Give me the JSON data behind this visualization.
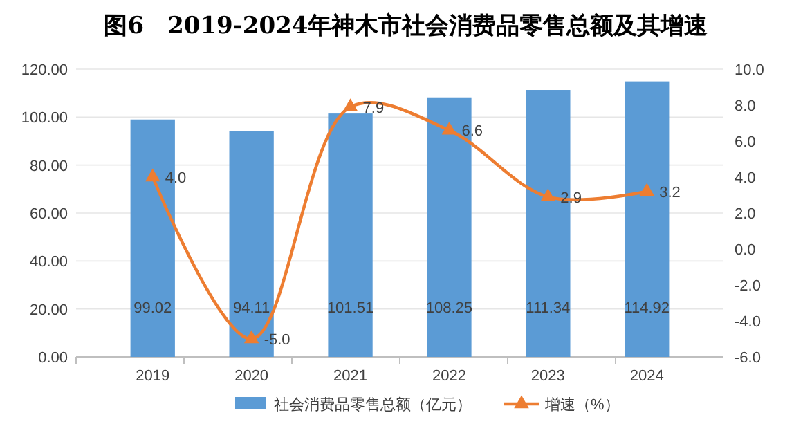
{
  "chart_data": {
    "type": "bar",
    "title": "图6　2019-2024年神木市社会消费品零售总额及其增速",
    "categories": [
      "2019",
      "2020",
      "2021",
      "2022",
      "2023",
      "2024"
    ],
    "series": [
      {
        "name": "社会消费品零售总额（亿元）",
        "color": "#5b9bd5",
        "values": [
          99.02,
          94.11,
          101.51,
          108.25,
          111.34,
          114.92
        ]
      },
      {
        "name": "增速（%）",
        "type": "line",
        "axis": "y2",
        "color": "#ed7d31",
        "values": [
          4.0,
          -5.0,
          7.9,
          6.6,
          2.9,
          3.2
        ],
        "value_labels": [
          "4.0",
          "-5.0",
          "7.9",
          "6.6",
          "2.9",
          "3.2"
        ]
      }
    ],
    "ylim": [
      0,
      120
    ],
    "yticks": [
      {
        "value": 0,
        "label": "0.00"
      },
      {
        "value": 20,
        "label": "20.00"
      },
      {
        "value": 40,
        "label": "40.00"
      },
      {
        "value": 60,
        "label": "60.00"
      },
      {
        "value": 80,
        "label": "80.00"
      },
      {
        "value": 100,
        "label": "100.00"
      },
      {
        "value": 120,
        "label": "120.00"
      }
    ],
    "y2lim": [
      -6,
      10
    ],
    "y2ticks": [
      {
        "value": -6,
        "label": "-6.0"
      },
      {
        "value": -4,
        "label": "-4.0"
      },
      {
        "value": -2,
        "label": "-2.0"
      },
      {
        "value": 0,
        "label": "0.0"
      },
      {
        "value": 2,
        "label": "2.0"
      },
      {
        "value": 4,
        "label": "4.0"
      },
      {
        "value": 6,
        "label": "6.0"
      },
      {
        "value": 8,
        "label": "8.0"
      },
      {
        "value": 10,
        "label": "10.0"
      }
    ],
    "grid": "y",
    "legend": "bottom",
    "marker": "triangle",
    "data_labels": true
  }
}
